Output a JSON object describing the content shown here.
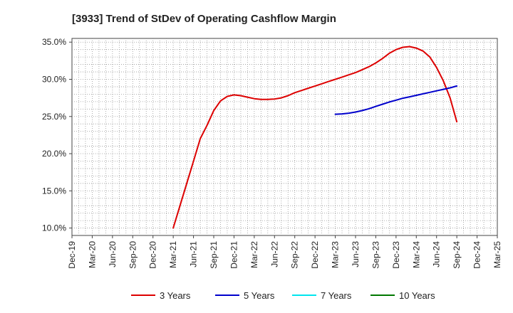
{
  "chart_data": {
    "type": "line",
    "title": "[3933]  Trend of StDev of Operating Cashflow Margin",
    "xlabel": "",
    "ylabel": "",
    "x_ticks": [
      "Dec-19",
      "Mar-20",
      "Jun-20",
      "Sep-20",
      "Dec-20",
      "Mar-21",
      "Jun-21",
      "Sep-21",
      "Dec-21",
      "Mar-22",
      "Jun-22",
      "Sep-22",
      "Dec-22",
      "Mar-23",
      "Jun-23",
      "Sep-23",
      "Dec-23",
      "Mar-24",
      "Jun-24",
      "Sep-24",
      "Dec-24",
      "Mar-25"
    ],
    "y_ticks": [
      "10.0%",
      "15.0%",
      "20.0%",
      "25.0%",
      "30.0%",
      "35.0%"
    ],
    "ylim": [
      9,
      35.5
    ],
    "grid": true,
    "legend_position": "bottom",
    "series": [
      {
        "name": "3 Years",
        "color": "#dd0000",
        "x": [
          "Mar-21",
          "Apr-21",
          "May-21",
          "Jun-21",
          "Jul-21",
          "Aug-21",
          "Sep-21",
          "Oct-21",
          "Nov-21",
          "Dec-21",
          "Jan-22",
          "Feb-22",
          "Mar-22",
          "Apr-22",
          "May-22",
          "Jun-22",
          "Jul-22",
          "Aug-22",
          "Sep-22",
          "Oct-22",
          "Nov-22",
          "Dec-22",
          "Jan-23",
          "Feb-23",
          "Mar-23",
          "Apr-23",
          "May-23",
          "Jun-23",
          "Jul-23",
          "Aug-23",
          "Sep-23",
          "Oct-23",
          "Nov-23",
          "Dec-23",
          "Jan-24",
          "Feb-24",
          "Mar-24",
          "Apr-24",
          "May-24",
          "Jun-24",
          "Jul-24",
          "Aug-24",
          "Sep-24"
        ],
        "values": [
          10.0,
          13.0,
          16.0,
          19.0,
          22.0,
          23.8,
          25.8,
          27.1,
          27.7,
          27.9,
          27.8,
          27.6,
          27.4,
          27.3,
          27.3,
          27.35,
          27.5,
          27.8,
          28.2,
          28.5,
          28.8,
          29.1,
          29.4,
          29.7,
          30.0,
          30.3,
          30.6,
          30.9,
          31.3,
          31.7,
          32.2,
          32.8,
          33.5,
          34.0,
          34.3,
          34.4,
          34.2,
          33.8,
          33.0,
          31.6,
          29.8,
          27.5,
          24.3
        ]
      },
      {
        "name": "5 Years",
        "color": "#0000cc",
        "x": [
          "Mar-23",
          "Apr-23",
          "May-23",
          "Jun-23",
          "Jul-23",
          "Aug-23",
          "Sep-23",
          "Oct-23",
          "Nov-23",
          "Dec-23",
          "Jan-24",
          "Feb-24",
          "Mar-24",
          "Apr-24",
          "May-24",
          "Jun-24",
          "Jul-24",
          "Aug-24",
          "Sep-24"
        ],
        "values": [
          25.3,
          25.35,
          25.45,
          25.6,
          25.8,
          26.05,
          26.35,
          26.65,
          26.95,
          27.2,
          27.45,
          27.65,
          27.85,
          28.05,
          28.25,
          28.45,
          28.65,
          28.85,
          29.1
        ]
      },
      {
        "name": "7 Years",
        "color": "#00e5ee",
        "x": [],
        "values": []
      },
      {
        "name": "10 Years",
        "color": "#007700",
        "x": [],
        "values": []
      }
    ]
  }
}
